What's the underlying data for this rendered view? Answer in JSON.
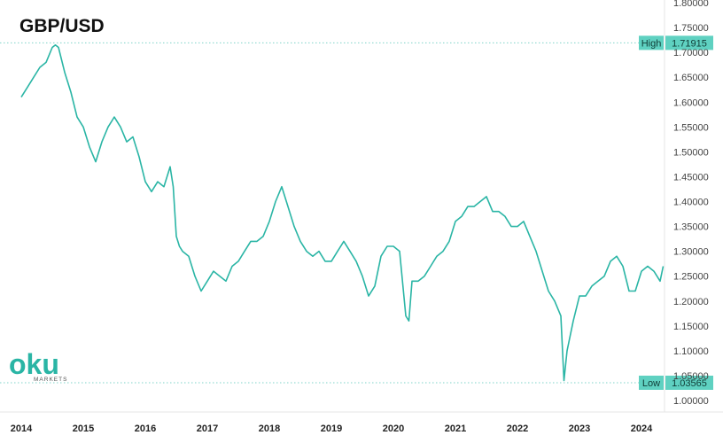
{
  "chart_data": {
    "type": "line",
    "title": "GBP/USD",
    "y_ticks": [
      "1.00000",
      "1.05000",
      "1.10000",
      "1.15000",
      "1.20000",
      "1.25000",
      "1.30000",
      "1.35000",
      "1.40000",
      "1.45000",
      "1.50000",
      "1.55000",
      "1.60000",
      "1.65000",
      "1.70000",
      "1.75000",
      "1.80000"
    ],
    "x_ticks": [
      "2014",
      "2015",
      "2016",
      "2017",
      "2018",
      "2019",
      "2020",
      "2021",
      "2022",
      "2023",
      "2024"
    ],
    "ylim": [
      0.99,
      1.8
    ],
    "grid": false,
    "line_color": "#2ab5a5",
    "high": {
      "label": "High",
      "value": "1.71915"
    },
    "low": {
      "label": "Low",
      "value": "1.03565"
    },
    "series": [
      {
        "x": [
          2014.0,
          2014.1,
          2014.2,
          2014.3,
          2014.4,
          2014.5,
          2014.55,
          2014.6,
          2014.7,
          2014.8,
          2014.9,
          2015.0,
          2015.1,
          2015.2,
          2015.3,
          2015.4,
          2015.5,
          2015.6,
          2015.7,
          2015.8,
          2015.9,
          2016.0,
          2016.1,
          2016.2,
          2016.3,
          2016.4,
          2016.45,
          2016.5,
          2016.55,
          2016.6,
          2016.7,
          2016.8,
          2016.9,
          2017.0,
          2017.1,
          2017.2,
          2017.3,
          2017.4,
          2017.5,
          2017.6,
          2017.7,
          2017.8,
          2017.9,
          2018.0,
          2018.1,
          2018.2,
          2018.3,
          2018.4,
          2018.5,
          2018.6,
          2018.7,
          2018.8,
          2018.9,
          2019.0,
          2019.1,
          2019.2,
          2019.3,
          2019.4,
          2019.5,
          2019.6,
          2019.7,
          2019.8,
          2019.9,
          2020.0,
          2020.1,
          2020.2,
          2020.25,
          2020.3,
          2020.4,
          2020.5,
          2020.6,
          2020.7,
          2020.8,
          2020.9,
          2021.0,
          2021.1,
          2021.2,
          2021.3,
          2021.4,
          2021.5,
          2021.6,
          2021.7,
          2021.8,
          2021.9,
          2022.0,
          2022.1,
          2022.2,
          2022.3,
          2022.4,
          2022.5,
          2022.6,
          2022.7,
          2022.75,
          2022.8,
          2022.9,
          2023.0,
          2023.1,
          2023.2,
          2023.3,
          2023.4,
          2023.5,
          2023.6,
          2023.7,
          2023.8,
          2023.9,
          2024.0,
          2024.1,
          2024.2,
          2024.3,
          2024.35
        ],
        "values": [
          1.61,
          1.63,
          1.65,
          1.67,
          1.68,
          1.71,
          1.715,
          1.71,
          1.66,
          1.62,
          1.57,
          1.55,
          1.51,
          1.48,
          1.52,
          1.55,
          1.57,
          1.55,
          1.52,
          1.53,
          1.49,
          1.44,
          1.42,
          1.44,
          1.43,
          1.47,
          1.43,
          1.33,
          1.31,
          1.3,
          1.29,
          1.25,
          1.22,
          1.24,
          1.26,
          1.25,
          1.24,
          1.27,
          1.28,
          1.3,
          1.32,
          1.32,
          1.33,
          1.36,
          1.4,
          1.43,
          1.39,
          1.35,
          1.32,
          1.3,
          1.29,
          1.3,
          1.28,
          1.28,
          1.3,
          1.32,
          1.3,
          1.28,
          1.25,
          1.21,
          1.23,
          1.29,
          1.31,
          1.31,
          1.3,
          1.17,
          1.16,
          1.24,
          1.24,
          1.25,
          1.27,
          1.29,
          1.3,
          1.32,
          1.36,
          1.37,
          1.39,
          1.39,
          1.4,
          1.41,
          1.38,
          1.38,
          1.37,
          1.35,
          1.35,
          1.36,
          1.33,
          1.3,
          1.26,
          1.22,
          1.2,
          1.17,
          1.04,
          1.1,
          1.16,
          1.21,
          1.21,
          1.23,
          1.24,
          1.25,
          1.28,
          1.29,
          1.27,
          1.22,
          1.22,
          1.26,
          1.27,
          1.26,
          1.24,
          1.27
        ]
      }
    ]
  }
}
